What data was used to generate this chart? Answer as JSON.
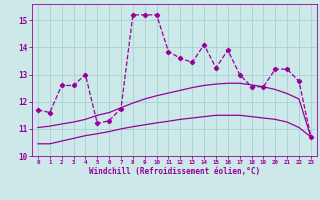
{
  "xlabel": "Windchill (Refroidissement éolien,°C)",
  "background_color": "#cce8e8",
  "line_color": "#990099",
  "grid_color": "#aad4d4",
  "x_values": [
    0,
    1,
    2,
    3,
    4,
    5,
    6,
    7,
    8,
    9,
    10,
    11,
    12,
    13,
    14,
    15,
    16,
    17,
    18,
    19,
    20,
    21,
    22,
    23
  ],
  "y_main": [
    11.7,
    11.6,
    12.6,
    12.6,
    13.0,
    11.2,
    11.3,
    11.75,
    15.2,
    15.2,
    15.2,
    13.85,
    13.6,
    13.45,
    14.1,
    13.25,
    13.9,
    13.0,
    12.55,
    12.55,
    13.2,
    13.2,
    12.75,
    10.7
  ],
  "y_low": [
    10.45,
    10.45,
    10.55,
    10.65,
    10.75,
    10.82,
    10.9,
    11.0,
    11.08,
    11.15,
    11.22,
    11.28,
    11.35,
    11.4,
    11.45,
    11.5,
    11.5,
    11.5,
    11.45,
    11.4,
    11.35,
    11.25,
    11.05,
    10.7
  ],
  "y_high": [
    11.05,
    11.1,
    11.18,
    11.25,
    11.35,
    11.5,
    11.6,
    11.78,
    11.95,
    12.1,
    12.22,
    12.32,
    12.42,
    12.52,
    12.6,
    12.65,
    12.68,
    12.68,
    12.62,
    12.55,
    12.45,
    12.3,
    12.1,
    10.7
  ],
  "ylim": [
    10.0,
    15.6
  ],
  "yticks": [
    10,
    11,
    12,
    13,
    14,
    15
  ]
}
